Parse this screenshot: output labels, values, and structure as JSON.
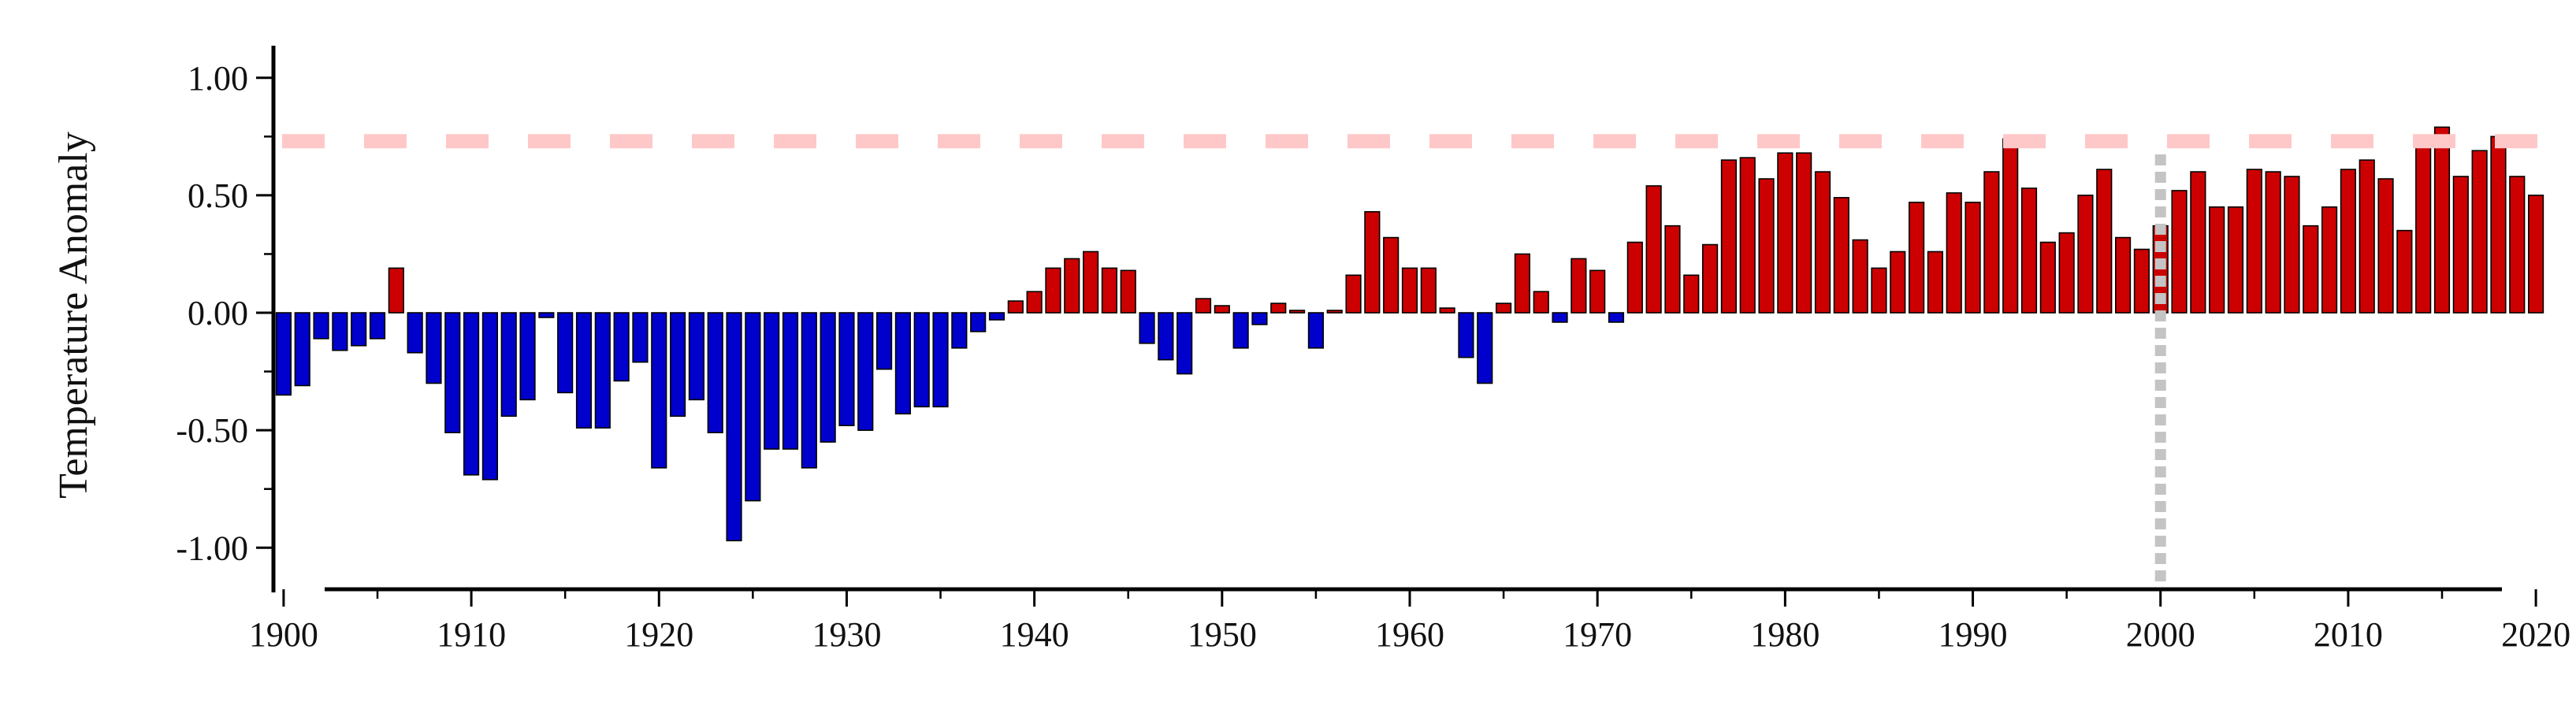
{
  "chart_data": {
    "type": "bar",
    "ylabel": "Temperature Anomaly",
    "xlabel": "",
    "title": "",
    "ylim": [
      -1.15,
      1.13
    ],
    "xlim": [
      1899.5,
      2020.5
    ],
    "y_ticks": [
      "-1.00",
      "-0.50",
      "0.00",
      "0.50",
      "1.00"
    ],
    "x_ticks": [
      "1900",
      "1910",
      "1920",
      "1930",
      "1940",
      "1950",
      "1960",
      "1970",
      "1980",
      "1990",
      "2000",
      "2010",
      "2020"
    ],
    "reference_line_value": 0.73,
    "reference_year": 2000,
    "grid": false,
    "legend": "none",
    "colors": {
      "negative": "#0000cc",
      "positive": "#cc0000",
      "bar_edge": "#000000",
      "reference_line": "#ffc8c8",
      "year_marker": "#c4c4c4",
      "axis": "#000000"
    },
    "x": [
      1900,
      1901,
      1902,
      1903,
      1904,
      1905,
      1906,
      1907,
      1908,
      1909,
      1910,
      1911,
      1912,
      1913,
      1914,
      1915,
      1916,
      1917,
      1918,
      1919,
      1920,
      1921,
      1922,
      1923,
      1924,
      1925,
      1926,
      1927,
      1928,
      1929,
      1930,
      1931,
      1932,
      1933,
      1934,
      1935,
      1936,
      1937,
      1938,
      1939,
      1940,
      1941,
      1942,
      1943,
      1944,
      1945,
      1946,
      1947,
      1948,
      1949,
      1950,
      1951,
      1952,
      1953,
      1954,
      1955,
      1956,
      1957,
      1958,
      1959,
      1960,
      1961,
      1962,
      1963,
      1964,
      1965,
      1966,
      1967,
      1968,
      1969,
      1970,
      1971,
      1972,
      1973,
      1974,
      1975,
      1976,
      1977,
      1978,
      1979,
      1980,
      1981,
      1982,
      1983,
      1984,
      1985,
      1986,
      1987,
      1988,
      1989,
      1990,
      1991,
      1992,
      1993,
      1994,
      1995,
      1996,
      1997,
      1998,
      1999,
      2000,
      2001,
      2002,
      2003,
      2004,
      2005,
      2006,
      2007,
      2008,
      2009,
      2010,
      2011,
      2012,
      2013,
      2014,
      2015,
      2016,
      2017,
      2018,
      2019,
      2020
    ],
    "values": [
      -0.35,
      -0.31,
      -0.11,
      -0.16,
      -0.14,
      -0.11,
      0.19,
      -0.17,
      -0.3,
      -0.51,
      -0.69,
      -0.71,
      -0.44,
      -0.37,
      -0.02,
      -0.34,
      -0.49,
      -0.49,
      -0.29,
      -0.21,
      -0.66,
      -0.44,
      -0.37,
      -0.51,
      -0.97,
      -0.8,
      -0.58,
      -0.58,
      -0.66,
      -0.55,
      -0.48,
      -0.5,
      -0.24,
      -0.43,
      -0.4,
      -0.4,
      -0.15,
      -0.08,
      -0.03,
      0.05,
      0.09,
      0.19,
      0.23,
      0.26,
      0.19,
      0.18,
      -0.13,
      -0.2,
      -0.26,
      0.06,
      0.03,
      -0.15,
      -0.05,
      0.04,
      0.01,
      -0.15,
      0.01,
      0.16,
      0.43,
      0.32,
      0.19,
      0.19,
      0.02,
      -0.19,
      -0.3,
      0.04,
      0.25,
      0.09,
      -0.04,
      0.23,
      0.18,
      -0.04,
      0.3,
      0.54,
      0.37,
      0.16,
      0.29,
      0.65,
      0.66,
      0.57,
      0.68,
      0.68,
      0.6,
      0.49,
      0.31,
      0.19,
      0.26,
      0.47,
      0.26,
      0.51,
      0.47,
      0.6,
      0.74,
      0.53,
      0.3,
      0.34,
      0.5,
      0.61,
      0.32,
      0.27,
      0.37,
      0.52,
      0.6,
      0.45,
      0.45,
      0.61,
      0.6,
      0.58,
      0.37,
      0.45,
      0.61,
      0.65,
      0.57,
      0.35,
      0.71,
      0.79,
      0.58,
      0.69,
      0.75,
      0.58,
      0.5
    ]
  }
}
